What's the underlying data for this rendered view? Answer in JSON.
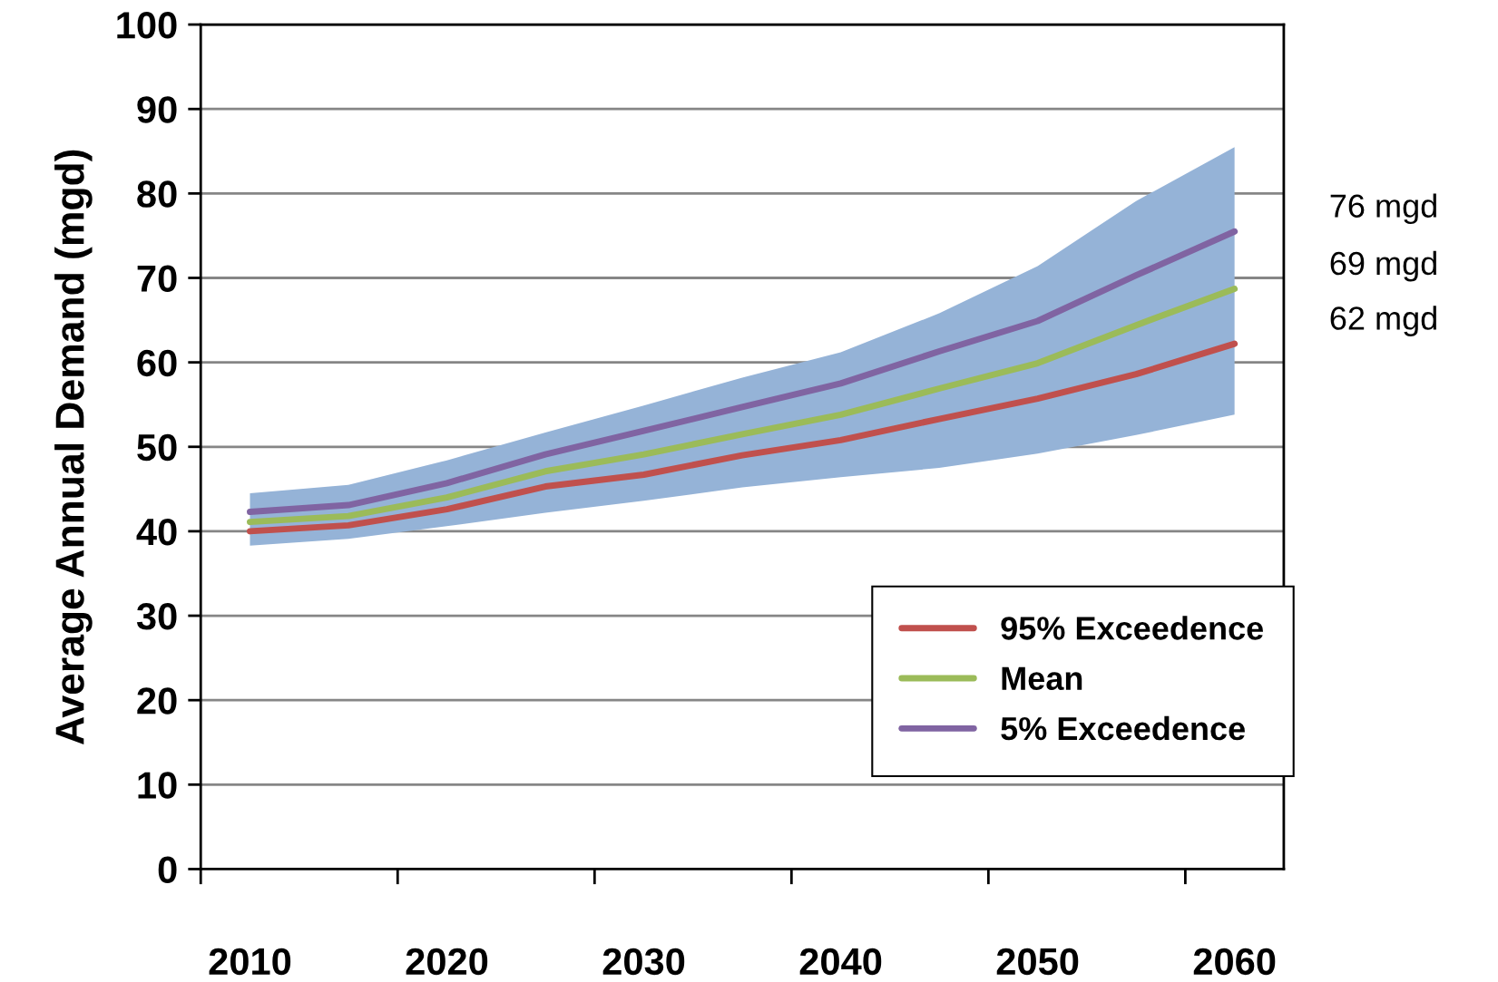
{
  "chart_data": {
    "type": "line",
    "ylabel": "Average Annual Demand (mgd)",
    "categories": [
      "2010",
      null,
      "2020",
      null,
      "2030",
      null,
      "2040",
      null,
      "2050",
      null,
      "2060"
    ],
    "series": [
      {
        "name": "95% Exceedence",
        "color": "#c0504d",
        "values": [
          40.0,
          40.7,
          42.6,
          45.3,
          46.7,
          49.0,
          50.8,
          53.3,
          55.7,
          58.6,
          62.2
        ]
      },
      {
        "name": "Mean",
        "color": "#9bbb59",
        "values": [
          41.1,
          41.8,
          44.0,
          47.1,
          49.1,
          51.5,
          53.8,
          56.9,
          59.9,
          64.4,
          68.7
        ],
        "lower": [
          38.3,
          39.1,
          40.6,
          42.2,
          43.6,
          45.2,
          46.4,
          47.5,
          49.2,
          51.4,
          53.8
        ],
        "upper": [
          44.5,
          45.5,
          48.4,
          51.7,
          54.9,
          58.2,
          61.2,
          65.8,
          71.4,
          79.1,
          85.5
        ]
      },
      {
        "name": "5% Exceedence",
        "color": "#8064a2",
        "values": [
          42.3,
          43.1,
          45.7,
          49.1,
          51.9,
          54.7,
          57.5,
          61.3,
          64.9,
          70.3,
          75.5
        ]
      }
    ],
    "ylim": [
      0,
      100
    ],
    "yticks": [
      0,
      10,
      20,
      30,
      40,
      50,
      60,
      70,
      80,
      90,
      100
    ],
    "grid": "y",
    "legend": "bottom right",
    "marker": "none",
    "line_style": "solid",
    "annotations": [
      {
        "text": "76 mgd",
        "x": "2060",
        "y": 75.5
      },
      {
        "text": "69 mgd",
        "x": "2060",
        "y": 68.7
      },
      {
        "text": "62 mgd",
        "x": "2060",
        "y": 62.2
      }
    ]
  }
}
